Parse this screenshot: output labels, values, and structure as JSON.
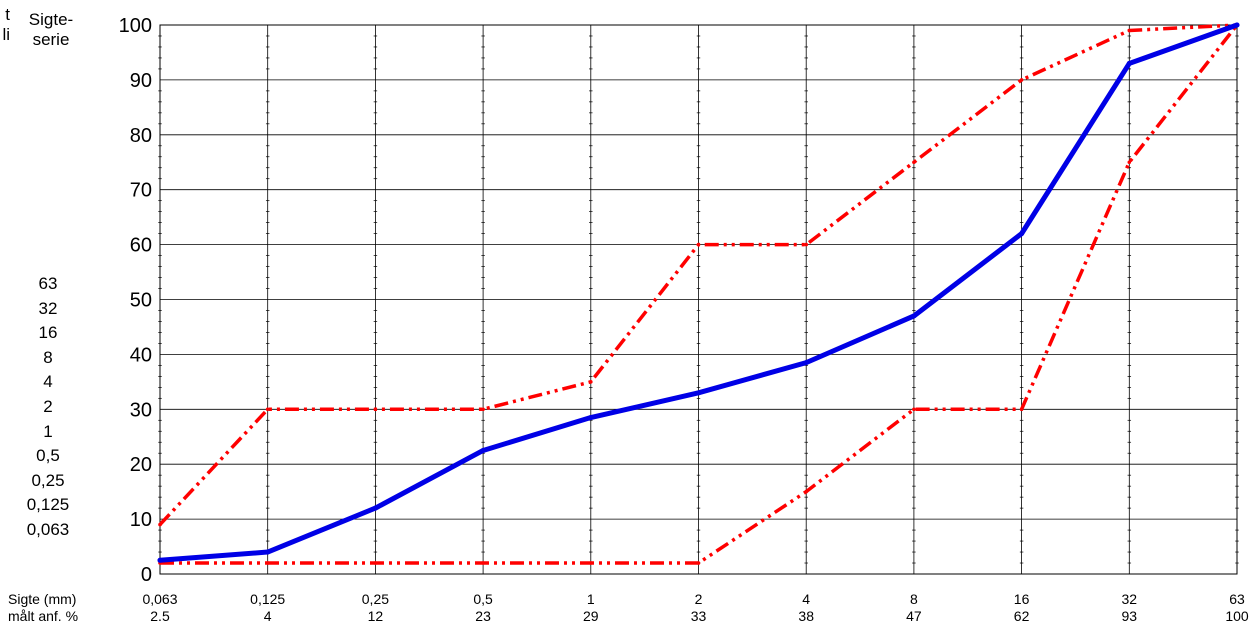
{
  "side_panel": {
    "col1_header": [
      "t",
      "li"
    ],
    "col2_header": [
      "Sigte-",
      "serie"
    ],
    "sieve_series": [
      "63",
      "32",
      "16",
      "8",
      "4",
      "2",
      "1",
      "0,5",
      "0,25",
      "0,125",
      "0,063"
    ]
  },
  "rows": {
    "sieve_label": "Sigte (mm)",
    "passing_label": "målt anf. %"
  },
  "chart_data": {
    "type": "line",
    "title": "",
    "xlabel": "",
    "ylabel": "",
    "categories": [
      "0,063",
      "0,125",
      "0,25",
      "0,5",
      "1",
      "2",
      "4",
      "8",
      "16",
      "32",
      "63"
    ],
    "passing_labels": [
      "2.5",
      "4",
      "12",
      "23",
      "29",
      "33",
      "38",
      "47",
      "62",
      "93",
      "100"
    ],
    "ylim": [
      0,
      100
    ],
    "yticks": [
      0,
      10,
      20,
      30,
      40,
      50,
      60,
      70,
      80,
      90,
      100
    ],
    "grid": true,
    "series": [
      {
        "role": "measured",
        "color": "#0000e6",
        "style": "solid",
        "values": [
          2.5,
          4,
          12,
          22.5,
          28.5,
          33,
          38.5,
          47,
          62,
          93,
          100
        ]
      },
      {
        "role": "upper-limit",
        "color": "#ff0000",
        "style": "dash-dot-dot",
        "values": [
          9,
          30,
          30,
          30,
          35,
          60,
          60,
          75,
          90,
          99,
          100
        ]
      },
      {
        "role": "lower-limit",
        "color": "#ff0000",
        "style": "dash-dot-dot",
        "values": [
          2,
          2,
          2,
          2,
          2,
          2,
          15,
          30,
          30,
          75,
          100
        ]
      }
    ]
  }
}
